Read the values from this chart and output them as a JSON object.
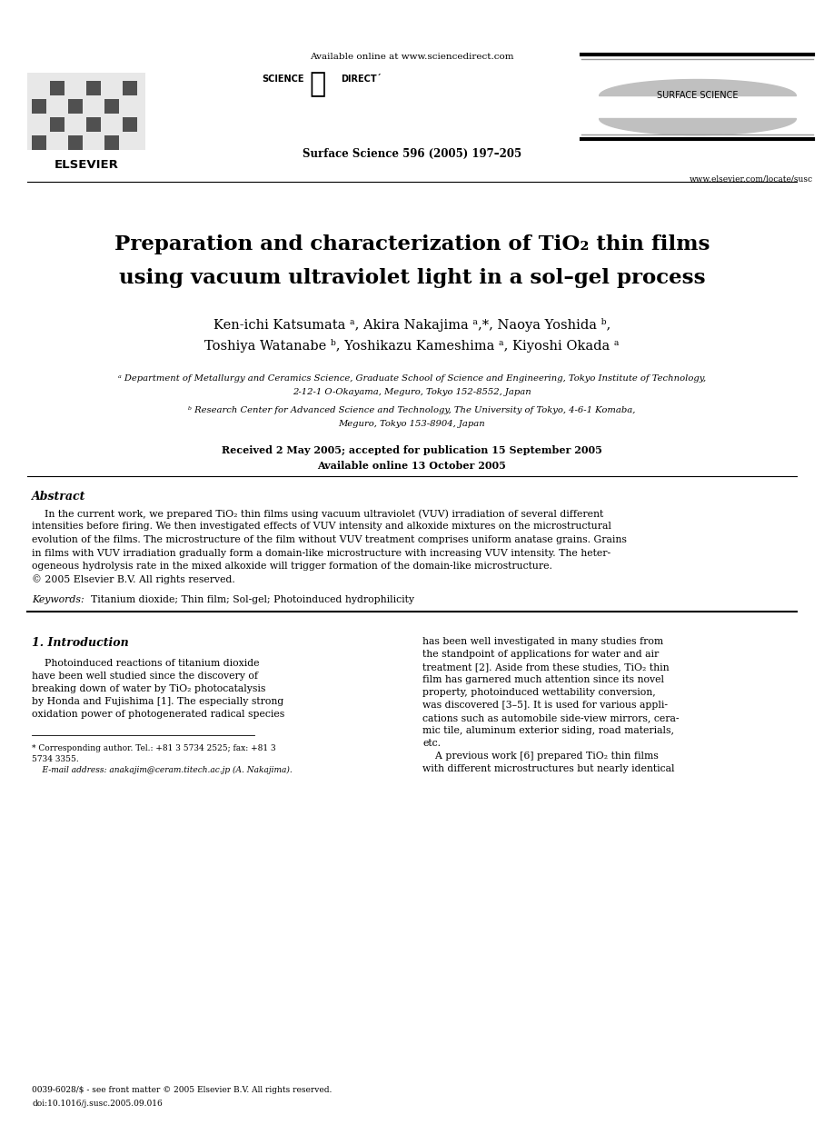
{
  "title_line1": "Preparation and characterization of TiO",
  "title_sub": "2",
  "title_line1_suffix": " thin films",
  "title_line2": "using vacuum ultraviolet light in a sol–gel process",
  "authors_line1": "Ken-ichi Katsumata ᵃ, Akira Nakajima ᵃ,*, Naoya Yoshida ᵇ,",
  "authors_line2": "Toshiya Watanabe ᵇ, Yoshikazu Kameshima ᵃ, Kiyoshi Okada ᵃ",
  "affil_a1": "ᵃ Department of Metallurgy and Ceramics Science, Graduate School of Science and Engineering, Tokyo Institute of Technology,",
  "affil_a2": "2-12-1 O-Okayama, Meguro, Tokyo 152-8552, Japan",
  "affil_b1": "ᵇ Research Center for Advanced Science and Technology, The University of Tokyo, 4-6-1 Komaba,",
  "affil_b2": "Meguro, Tokyo 153-8904, Japan",
  "received": "Received 2 May 2005; accepted for publication 15 September 2005",
  "available": "Available online 13 October 2005",
  "journal_info": "Surface Science 596 (2005) 197–205",
  "available_online": "Available online at www.sciencedirect.com",
  "elsevier_url": "www.elsevier.com/locate/susc",
  "issn": "0039-6028/$ - see front matter © 2005 Elsevier B.V. All rights reserved.",
  "doi": "doi:10.1016/j.susc.2005.09.016",
  "abstract_title": "Abstract",
  "abstract_lines": [
    "    In the current work, we prepared TiO₂ thin films using vacuum ultraviolet (VUV) irradiation of several different",
    "intensities before firing. We then investigated effects of VUV intensity and alkoxide mixtures on the microstructural",
    "evolution of the films. The microstructure of the film without VUV treatment comprises uniform anatase grains. Grains",
    "in films with VUV irradiation gradually form a domain-like microstructure with increasing VUV intensity. The heter-",
    "ogeneous hydrolysis rate in the mixed alkoxide will trigger formation of the domain-like microstructure.",
    "© 2005 Elsevier B.V. All rights reserved."
  ],
  "keywords_label": "Keywords:",
  "keywords_text": "Titanium dioxide; Thin film; Sol-gel; Photoinduced hydrophilicity",
  "section1_title": "1. Introduction",
  "intro_left_lines": [
    "    Photoinduced reactions of titanium dioxide",
    "have been well studied since the discovery of",
    "breaking down of water by TiO₂ photocatalysis",
    "by Honda and Fujishima [1]. The especially strong",
    "oxidation power of photogenerated radical species"
  ],
  "intro_right_lines": [
    "has been well investigated in many studies from",
    "the standpoint of applications for water and air",
    "treatment [2]. Aside from these studies, TiO₂ thin",
    "film has garnered much attention since its novel",
    "property, photoinduced wettability conversion,",
    "was discovered [3–5]. It is used for various appli-",
    "cations such as automobile side-view mirrors, cera-",
    "mic tile, aluminum exterior siding, road materials,",
    "etc.",
    "    A previous work [6] prepared TiO₂ thin films",
    "with different microstructures but nearly identical"
  ],
  "footnote1": "* Corresponding author. Tel.: +81 3 5734 2525; fax: +81 3",
  "footnote2": "5734 3355.",
  "footnote3": "    E-mail address: anakajim@ceram.titech.ac.jp (A. Nakajima).",
  "bg_color": "#ffffff"
}
